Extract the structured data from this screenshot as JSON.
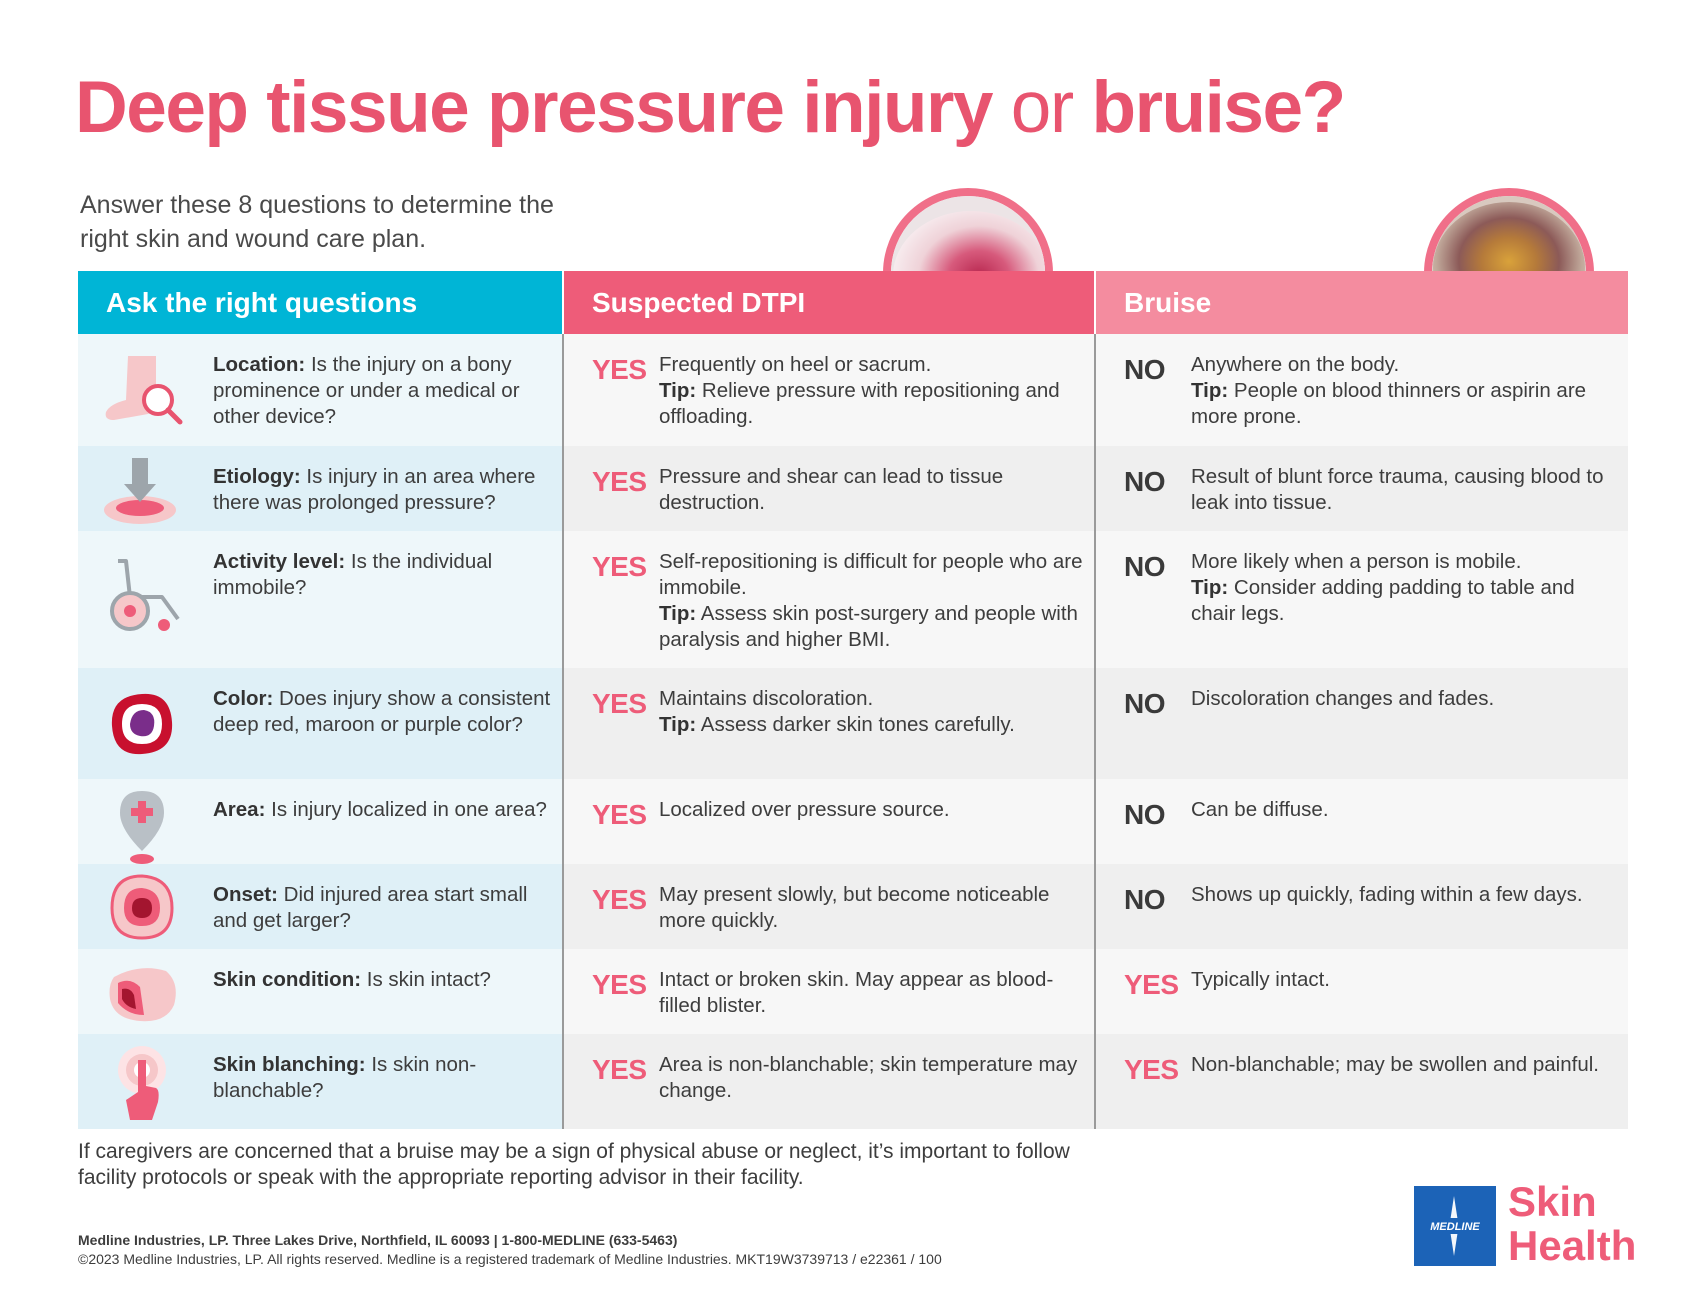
{
  "title": {
    "part1": "Deep tissue pressure injury",
    "or": "or",
    "part2": "bruise?"
  },
  "subtitle": "Answer these 8 questions to determine the right skin and wound care plan.",
  "headers": {
    "questions": "Ask the right questions",
    "dtpi": "Suspected DTPI",
    "bruise": "Bruise"
  },
  "rows": [
    {
      "icon": "foot-magnifier-icon",
      "q_label": "Location:",
      "q_text": " Is the injury on a bony prominence or under a medical or other device?",
      "d_ans": "YES",
      "d_text": "Frequently on heel or sacrum.",
      "d_tip_label": "Tip:",
      "d_tip": " Relieve pressure with repositioning and offloading.",
      "b_ans": "NO",
      "b_text": "Anywhere on the body.",
      "b_tip_label": "Tip:",
      "b_tip": " People on blood thinners or aspirin are more prone."
    },
    {
      "icon": "pressure-arrow-icon",
      "q_label": "Etiology:",
      "q_text": " Is injury in an area where there was prolonged pressure?",
      "d_ans": "YES",
      "d_text": "Pressure and shear can lead to tissue destruction.",
      "d_tip_label": "",
      "d_tip": "",
      "b_ans": "NO",
      "b_text": "Result of blunt force trauma, causing blood to leak into tissue.",
      "b_tip_label": "",
      "b_tip": ""
    },
    {
      "icon": "wheelchair-icon",
      "q_label": "Activity level:",
      "q_text": " Is the individual immobile?",
      "d_ans": "YES",
      "d_text": "Self-repositioning is difficult for people who are immobile.",
      "d_tip_label": "Tip:",
      "d_tip": " Assess skin post-surgery and people with paralysis and higher BMI.",
      "b_ans": "NO",
      "b_text": "More likely when a person is mobile.",
      "b_tip_label": "Tip:",
      "b_tip": " Consider adding padding to table and chair legs."
    },
    {
      "icon": "color-wound-icon",
      "q_label": "Color:",
      "q_text": " Does injury show a consistent deep red, maroon or purple color?",
      "d_ans": "YES",
      "d_text": "Maintains discoloration.",
      "d_tip_label": "Tip:",
      "d_tip": " Assess darker skin tones carefully.",
      "b_ans": "NO",
      "b_text": "Discoloration changes and fades.",
      "b_tip_label": "",
      "b_tip": ""
    },
    {
      "icon": "location-pin-icon",
      "q_label": "Area:",
      "q_text": " Is injury localized in one area?",
      "d_ans": "YES",
      "d_text": "Localized over pressure source.",
      "d_tip_label": "",
      "d_tip": "",
      "b_ans": "NO",
      "b_text": "Can be diffuse.",
      "b_tip_label": "",
      "b_tip": ""
    },
    {
      "icon": "onset-wound-icon",
      "q_label": "Onset:",
      "q_text": " Did injured area start small and get larger?",
      "d_ans": "YES",
      "d_text": "May present slowly, but become noticeable more quickly.",
      "d_tip_label": "",
      "d_tip": "",
      "b_ans": "NO",
      "b_text": "Shows up quickly, fading within a few days.",
      "b_tip_label": "",
      "b_tip": ""
    },
    {
      "icon": "skin-layer-icon",
      "q_label": "Skin condition:",
      "q_text": " Is skin intact?",
      "d_ans": "YES",
      "d_text": "Intact or broken skin. May appear as blood-filled blister.",
      "d_tip_label": "",
      "d_tip": "",
      "b_ans": "YES",
      "b_text": "Typically intact.",
      "b_tip_label": "",
      "b_tip": ""
    },
    {
      "icon": "finger-press-icon",
      "q_label": "Skin blanching:",
      "q_text": " Is skin non-blanchable?",
      "d_ans": "YES",
      "d_text": "Area is non-blanchable; skin temperature may change.",
      "d_tip_label": "",
      "d_tip": "",
      "b_ans": "YES",
      "b_text": "Non-blanchable; may be swollen and painful.",
      "b_tip_label": "",
      "b_tip": ""
    }
  ],
  "footnote": "If caregivers are concerned that a bruise may be a sign of physical abuse or neglect, it’s important to follow facility protocols or speak with the appropriate reporting advisor in their facility.",
  "address": "Medline Industries, LP.  Three Lakes Drive, Northfield, IL 60093  |  1-800-MEDLINE (633-5463)",
  "copyright": "©2023 Medline Industries, LP. All rights reserved. Medline is a registered trademark of Medline Industries. MKT19W3739713 / e22361 / 100",
  "logo": {
    "brand": "MEDLINE",
    "word1": "Skin",
    "word2": "Health"
  },
  "colors": {
    "pink": "#ee5c79",
    "cyan": "#00b5d6",
    "light_pink": "#f48c9f",
    "medline_blue": "#1c63b7"
  }
}
